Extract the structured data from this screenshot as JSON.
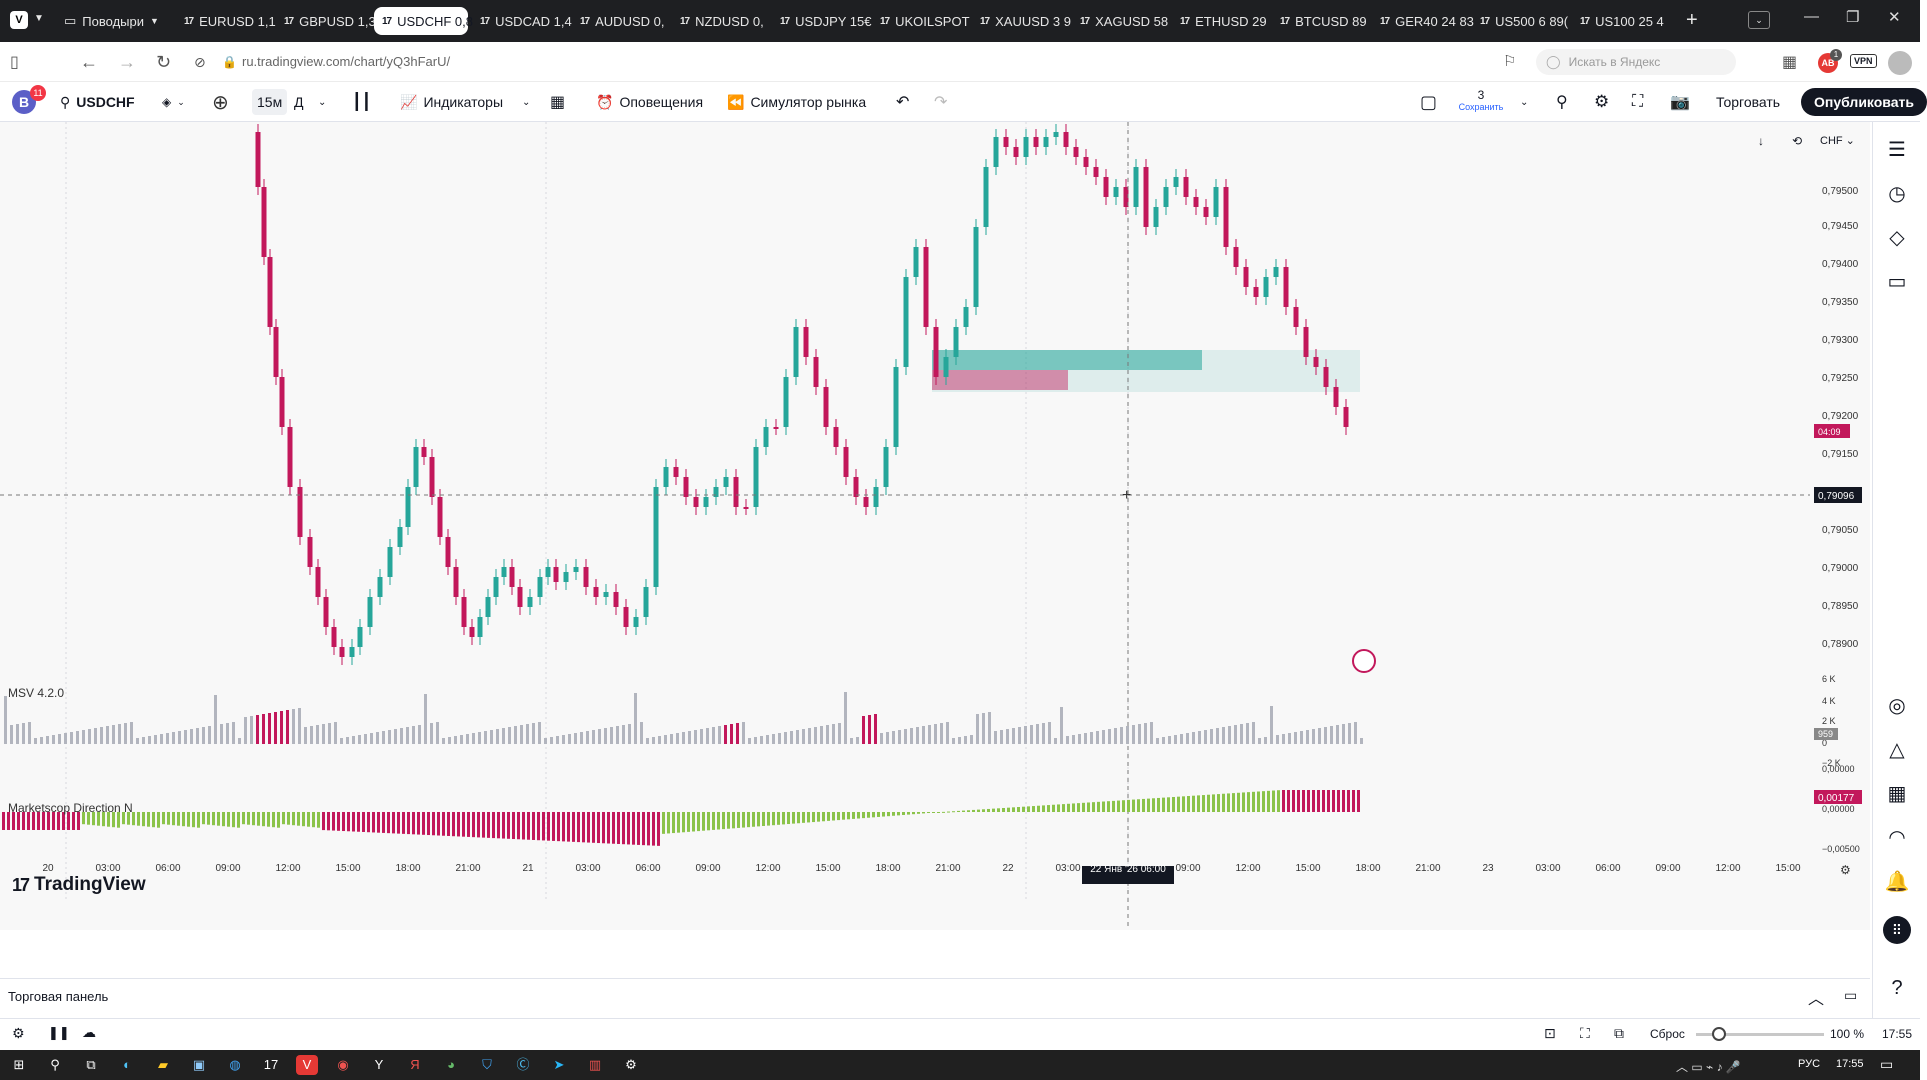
{
  "browser": {
    "profile_label": "Поводыри",
    "tabs": [
      {
        "label": "EURUSD 1,1",
        "active": false
      },
      {
        "label": "GBPUSD 1,3",
        "active": false
      },
      {
        "label": "USDCHF 0,8",
        "active": true
      },
      {
        "label": "USDCAD 1,4",
        "active": false
      },
      {
        "label": "AUDUSD 0,",
        "active": false
      },
      {
        "label": "NZDUSD 0,",
        "active": false
      },
      {
        "label": "USDJPY 15€",
        "active": false
      },
      {
        "label": "UKOILSPOT",
        "active": false
      },
      {
        "label": "XAUUSD 3 9",
        "active": false
      },
      {
        "label": "XAGUSD 58",
        "active": false
      },
      {
        "label": "ETHUSD 29",
        "active": false
      },
      {
        "label": "BTCUSD 89",
        "active": false
      },
      {
        "label": "GER40 24 83",
        "active": false
      },
      {
        "label": "US500 6 89(",
        "active": false
      },
      {
        "label": "US100 25 4",
        "active": false
      }
    ],
    "url": "ru.tradingview.com/chart/yQ3hFarU/",
    "search_placeholder": "Искать в Яндекс",
    "badge_count": "1",
    "vpn_label": "VPN"
  },
  "toolbar": {
    "avatar_letter": "B",
    "avatar_badge": "11",
    "symbol": "USDCHF",
    "interval": "15м",
    "interval_alt": "Д",
    "indicators": "Индикаторы",
    "alerts": "Оповещения",
    "replay": "Симулятор рынка",
    "layout_count": "3",
    "save": "Сохранить",
    "trade": "Торговать",
    "publish": "Опубликовать"
  },
  "chart": {
    "currency": "CHF",
    "price_ticks": [
      "0,79500",
      "0,79450",
      "0,79400",
      "0,79350",
      "0,79300",
      "0,79250",
      "0,79200",
      "0,79150",
      "0,79050",
      "0,79000",
      "0,78950",
      "0,78900"
    ],
    "current_price": "0,79096",
    "countdown": "04:09",
    "volume_label": "MSV 4.2.0",
    "volume_ticks": [
      "6 K",
      "4 K",
      "2 K",
      "0",
      "−2 K"
    ],
    "volume_value": "959",
    "direction_label": "Marketscop Direction N",
    "direction_value": "0,00177",
    "direction_ticks": [
      "0,00000",
      "0,00000",
      "−0,00500"
    ],
    "brand": "TradingView",
    "time_labels": [
      "20",
      "03:00",
      "06:00",
      "09:00",
      "12:00",
      "15:00",
      "18:00",
      "21:00",
      "21",
      "03:00",
      "06:00",
      "09:00",
      "12:00",
      "15:00",
      "18:00",
      "21:00",
      "22",
      "03:00",
      "09:00",
      "12:00",
      "15:00",
      "18:00",
      "21:00",
      "23",
      "03:00",
      "06:00",
      "09:00",
      "12:00",
      "15:00"
    ],
    "crosshair_time": "22 Янв '26   06:00",
    "colors": {
      "up": "#26a69a",
      "down": "#c2185b",
      "bull_hist": "#8bc34a",
      "bear_hist": "#c2185b",
      "vol": "#b2b5be"
    }
  },
  "panel": {
    "title": "Торговая панель"
  },
  "status": {
    "reset": "Сброс",
    "zoom": "100 %",
    "clock": "17:55"
  },
  "taskbar": {
    "lang": "РУС",
    "time": "17:55"
  }
}
